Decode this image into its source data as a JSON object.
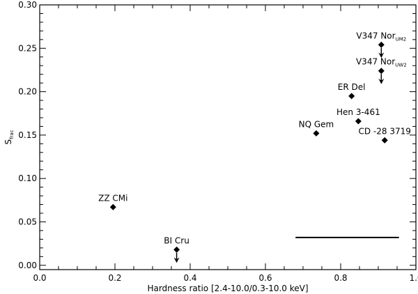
{
  "chart_data": {
    "type": "scatter",
    "xlabel": "Hardness ratio [2.4-10.0/0.3-10.0 keV]",
    "ylabel": "S",
    "ylabel_sub": "frac",
    "xlim": [
      0.0,
      1.0
    ],
    "ylim": [
      -0.005,
      0.3
    ],
    "x_ticks": [
      "0.0",
      "0.2",
      "0.4",
      "0.6",
      "0.8",
      "1.0"
    ],
    "y_ticks": [
      "0.00",
      "0.05",
      "0.10",
      "0.15",
      "0.20",
      "0.25",
      "0.30"
    ],
    "grid": false,
    "points": [
      {
        "label": "ZZ CMi",
        "sub": "",
        "x": 0.195,
        "y": 0.067,
        "upper_limit": false
      },
      {
        "label": "BI Cru",
        "sub": "",
        "x": 0.364,
        "y": 0.018,
        "upper_limit": true
      },
      {
        "label": "NQ Gem",
        "sub": "",
        "x": 0.735,
        "y": 0.152,
        "upper_limit": false
      },
      {
        "label": "ER Del",
        "sub": "",
        "x": 0.829,
        "y": 0.195,
        "upper_limit": false
      },
      {
        "label": "Hen 3-461",
        "sub": "",
        "x": 0.847,
        "y": 0.166,
        "upper_limit": false
      },
      {
        "label": "CD -28 3719",
        "sub": "",
        "x": 0.917,
        "y": 0.144,
        "upper_limit": false
      },
      {
        "label": "V347 Nor",
        "sub": "UM2",
        "x": 0.908,
        "y": 0.254,
        "upper_limit": true
      },
      {
        "label": "V347 Nor",
        "sub": "UW2",
        "x": 0.908,
        "y": 0.224,
        "upper_limit": true
      }
    ],
    "reference_line": {
      "x_start": 0.68,
      "x_end": 0.955,
      "y": 0.032
    }
  }
}
